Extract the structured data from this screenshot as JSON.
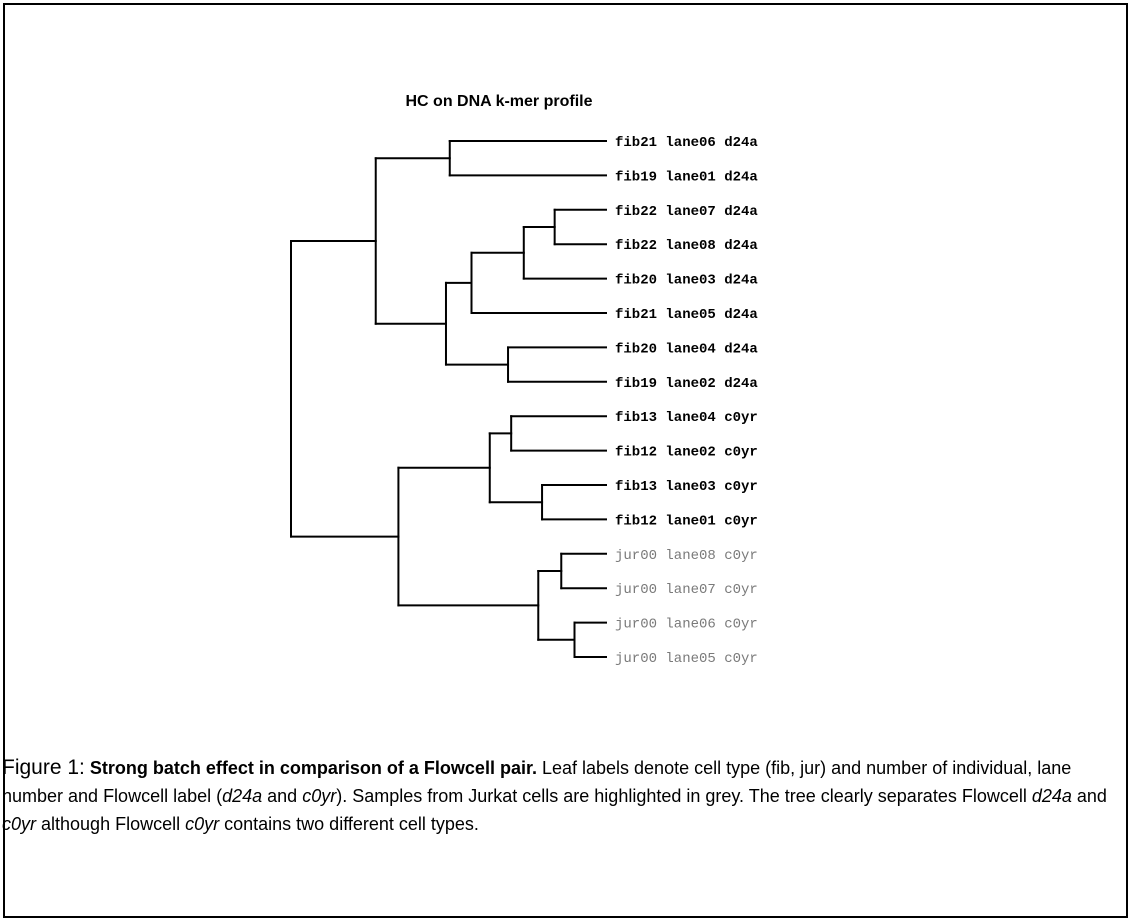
{
  "figure": {
    "title": "HC on DNA k-mer profile",
    "caption": {
      "label": "Figure 1:",
      "bold": "Strong batch effect in comparison of a Flowcell pair.",
      "s1": " Leaf labels denote cell type (fib, jur) and number of individual, lane number and Flowcell label (",
      "i1": "d24a",
      "s2": " and ",
      "i2": "c0yr",
      "s3": ").  Samples from Jurkat cells are highlighted in grey.  The tree clearly separates Flowcell ",
      "i3": "d24a",
      "s4": " and ",
      "i4": "c0yr",
      "s5": " although Flowcell ",
      "i5": "c0yr",
      "s6": " contains two different cell types."
    }
  },
  "tree": {
    "leaves": [
      {
        "label": "fib21 lane06 d24a",
        "color": "#000000"
      },
      {
        "label": "fib19 lane01 d24a",
        "color": "#000000"
      },
      {
        "label": "fib22 lane07 d24a",
        "color": "#000000"
      },
      {
        "label": "fib22 lane08 d24a",
        "color": "#000000"
      },
      {
        "label": "fib20 lane03 d24a",
        "color": "#000000"
      },
      {
        "label": "fib21 lane05 d24a",
        "color": "#000000"
      },
      {
        "label": "fib20 lane04 d24a",
        "color": "#000000"
      },
      {
        "label": "fib19 lane02 d24a",
        "color": "#000000"
      },
      {
        "label": "fib13 lane04 c0yr",
        "color": "#000000"
      },
      {
        "label": "fib12 lane02 c0yr",
        "color": "#000000"
      },
      {
        "label": "fib13 lane03 c0yr",
        "color": "#000000"
      },
      {
        "label": "fib12 lane01 c0yr",
        "color": "#000000"
      },
      {
        "label": "jur00 lane08 c0yr",
        "color": "#7a7a7a"
      },
      {
        "label": "jur00 lane07 c0yr",
        "color": "#7a7a7a"
      },
      {
        "label": "jur00 lane06 c0yr",
        "color": "#7a7a7a"
      },
      {
        "label": "jur00 lane05 c0yr",
        "color": "#7a7a7a"
      }
    ],
    "merges": [
      {
        "a": "L0",
        "b": "L1",
        "h": 0.496
      },
      {
        "a": "L2",
        "b": "L3",
        "h": 0.163
      },
      {
        "a": "M1",
        "b": "L4",
        "h": 0.261
      },
      {
        "a": "M2",
        "b": "L5",
        "h": 0.427
      },
      {
        "a": "L6",
        "b": "L7",
        "h": 0.311
      },
      {
        "a": "M3",
        "b": "M4",
        "h": 0.508
      },
      {
        "a": "M0",
        "b": "M5",
        "h": 0.731
      },
      {
        "a": "L8",
        "b": "L9",
        "h": 0.301
      },
      {
        "a": "L10",
        "b": "L11",
        "h": 0.203
      },
      {
        "a": "M7",
        "b": "M8",
        "h": 0.369
      },
      {
        "a": "L12",
        "b": "L13",
        "h": 0.142
      },
      {
        "a": "L14",
        "b": "L15",
        "h": 0.1
      },
      {
        "a": "M10",
        "b": "M11",
        "h": 0.215
      },
      {
        "a": "M9",
        "b": "M12",
        "h": 0.659
      },
      {
        "a": "M6",
        "b": "M13",
        "h": 1.0
      }
    ]
  }
}
